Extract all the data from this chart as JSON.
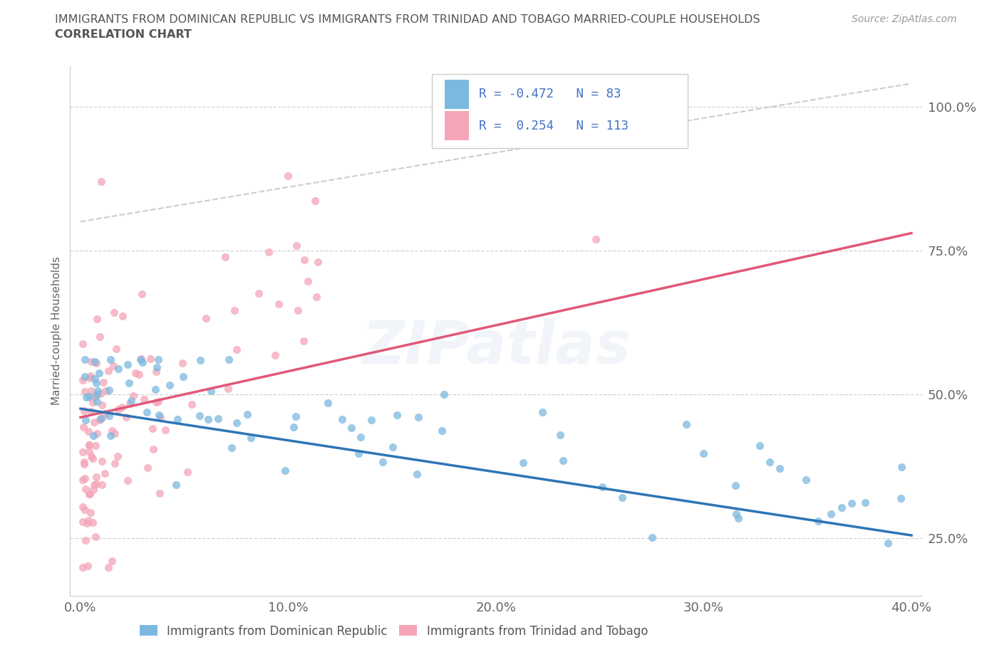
{
  "title_line1": "IMMIGRANTS FROM DOMINICAN REPUBLIC VS IMMIGRANTS FROM TRINIDAD AND TOBAGO MARRIED-COUPLE HOUSEHOLDS",
  "title_line2": "CORRELATION CHART",
  "source": "Source: ZipAtlas.com",
  "ylabel": "Married-couple Households",
  "legend_label1": "Immigrants from Dominican Republic",
  "legend_label2": "Immigrants from Trinidad and Tobago",
  "R1": -0.472,
  "N1": 83,
  "R2": 0.254,
  "N2": 113,
  "xlim": [
    -0.005,
    0.405
  ],
  "ylim": [
    0.15,
    1.07
  ],
  "yticks": [
    0.25,
    0.5,
    0.75,
    1.0
  ],
  "ytick_labels": [
    "25.0%",
    "50.0%",
    "75.0%",
    "100.0%"
  ],
  "xticks": [
    0.0,
    0.1,
    0.2,
    0.3,
    0.4
  ],
  "xtick_labels": [
    "0.0%",
    "10.0%",
    "20.0%",
    "30.0%",
    "40.0%"
  ],
  "color_blue": "#7cb9e0",
  "color_blue_line": "#2e75b6",
  "color_pink": "#f4a6b8",
  "color_pink_line": "#e05878",
  "color_dashed": "#c0c0c0",
  "axis_color": "#4472C4",
  "background_color": "#ffffff",
  "watermark_text": "ZIPatlas",
  "seed_blue": 42,
  "seed_pink": 77
}
